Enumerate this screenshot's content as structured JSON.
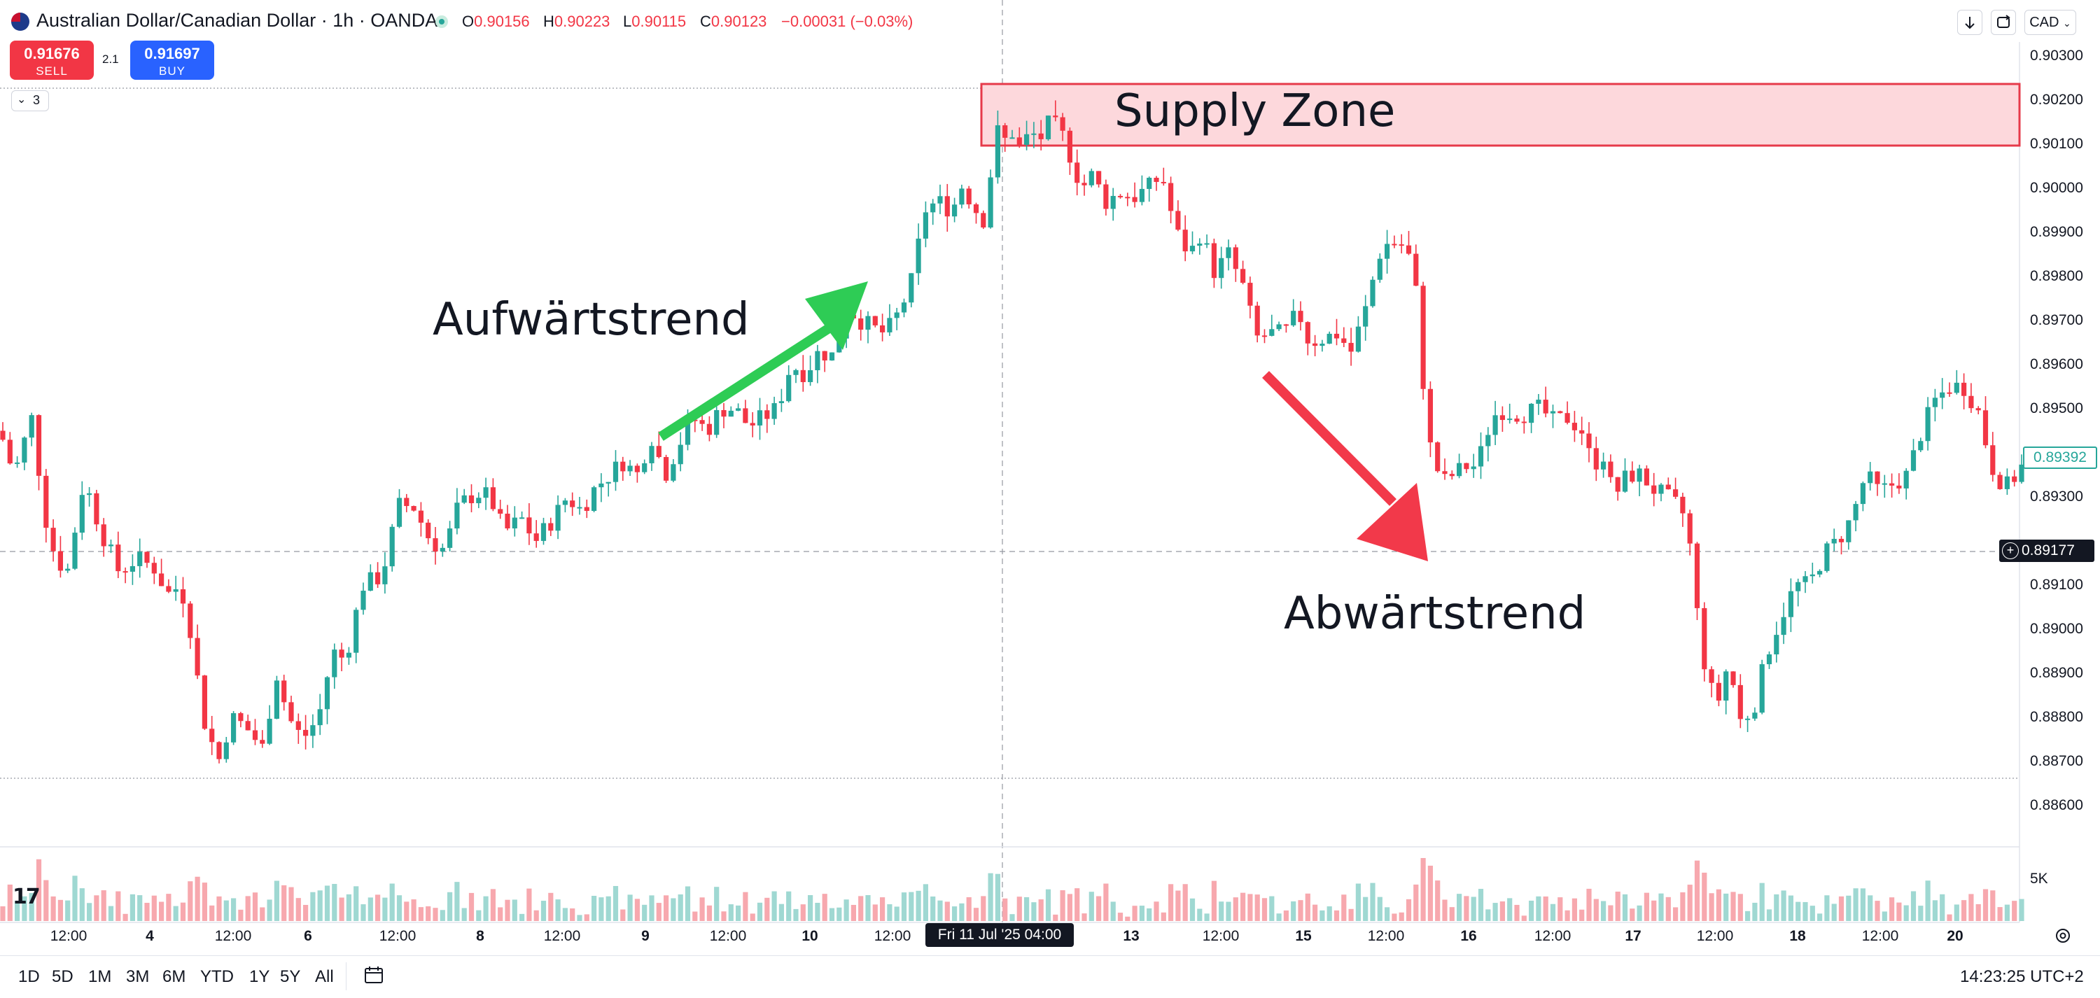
{
  "header": {
    "symbol_title": "Australian Dollar/Canadian Dollar · 1h · OANDA",
    "ohlc": [
      {
        "key": "O",
        "value": "0.90156"
      },
      {
        "key": "H",
        "value": "0.90223"
      },
      {
        "key": "L",
        "value": "0.90115"
      },
      {
        "key": "C",
        "value": "0.90123"
      }
    ],
    "change": "−0.00031 (−0.03%)",
    "currency": "CAD",
    "icons": [
      "au-flag-icon",
      "live-status-dot-icon",
      "arrow-down-icon",
      "refresh-icon"
    ]
  },
  "trade": {
    "sell_price": "0.91676",
    "sell_label": "SELL",
    "spread": "2.1",
    "buy_price": "0.91697",
    "buy_label": "BUY"
  },
  "indicator_collapse": {
    "count": "3"
  },
  "annotations": {
    "uptrend": "Aufwärtstrend",
    "downtrend": "Abwärtstrend",
    "supply_zone": "Supply Zone"
  },
  "price_axis": {
    "ticks": [
      "0.90300",
      "0.90200",
      "0.90100",
      "0.90000",
      "0.89900",
      "0.89800",
      "0.89700",
      "0.89600",
      "0.89500",
      "0.89400",
      "0.89300",
      "0.89100",
      "0.89000",
      "0.88900",
      "0.88800",
      "0.88700",
      "0.88600"
    ],
    "current_price": "0.89392",
    "crosshair_price": "0.89177",
    "volume_scale": "5K"
  },
  "time_axis": {
    "ticks": [
      {
        "label": "12:00",
        "bold": false
      },
      {
        "label": "4",
        "bold": true
      },
      {
        "label": "12:00",
        "bold": false
      },
      {
        "label": "6",
        "bold": true
      },
      {
        "label": "12:00",
        "bold": false
      },
      {
        "label": "8",
        "bold": true
      },
      {
        "label": "12:00",
        "bold": false
      },
      {
        "label": "9",
        "bold": true
      },
      {
        "label": "12:00",
        "bold": false
      },
      {
        "label": "10",
        "bold": true
      },
      {
        "label": "12:00",
        "bold": false
      },
      {
        "label": "13",
        "bold": true
      },
      {
        "label": "12:00",
        "bold": false
      },
      {
        "label": "15",
        "bold": true
      },
      {
        "label": "12:00",
        "bold": false
      },
      {
        "label": "16",
        "bold": true
      },
      {
        "label": "12:00",
        "bold": false
      },
      {
        "label": "17",
        "bold": true
      },
      {
        "label": "12:00",
        "bold": false
      },
      {
        "label": "18",
        "bold": true
      },
      {
        "label": "12:00",
        "bold": false
      },
      {
        "label": "20",
        "bold": true
      }
    ],
    "crosshair_time": "Fri 11 Jul '25   04:00"
  },
  "bottom_bar": {
    "ranges": [
      "1D",
      "5D",
      "1M",
      "3M",
      "6M",
      "YTD",
      "1Y",
      "5Y",
      "All"
    ],
    "clock": "14:23:25 UTC+2"
  },
  "colors": {
    "up": "#26a69a",
    "down": "#f23645",
    "supply_fill": "#fdd8dc",
    "arrow_up": "#2ecc55",
    "arrow_down": "#f2394a",
    "sell": "#f23645",
    "buy": "#2962ff"
  },
  "chart_data": {
    "type": "candlestick",
    "title": "Australian Dollar/Canadian Dollar · 1h · OANDA",
    "ylim": [
      0.8855,
      0.9035
    ],
    "supply_zone": [
      0.9009,
      0.9024
    ],
    "current_price": 0.89392,
    "crosshair_price": 0.89177,
    "close_path": [
      [
        0,
        0.8945
      ],
      [
        20,
        0.8935
      ],
      [
        45,
        0.8948
      ],
      [
        70,
        0.892
      ],
      [
        95,
        0.8912
      ],
      [
        120,
        0.8934
      ],
      [
        145,
        0.8922
      ],
      [
        170,
        0.8913
      ],
      [
        195,
        0.8916
      ],
      [
        220,
        0.8914
      ],
      [
        240,
        0.8908
      ],
      [
        258,
        0.891
      ],
      [
        272,
        0.89
      ],
      [
        290,
        0.888
      ],
      [
        312,
        0.887
      ],
      [
        330,
        0.888
      ],
      [
        350,
        0.8878
      ],
      [
        375,
        0.8873
      ],
      [
        395,
        0.889
      ],
      [
        412,
        0.888
      ],
      [
        432,
        0.8875
      ],
      [
        455,
        0.888
      ],
      [
        475,
        0.8895
      ],
      [
        493,
        0.8893
      ],
      [
        518,
        0.891
      ],
      [
        545,
        0.8912
      ],
      [
        570,
        0.8928
      ],
      [
        590,
        0.8928
      ],
      [
        615,
        0.892
      ],
      [
        635,
        0.8918
      ],
      [
        655,
        0.8928
      ],
      [
        680,
        0.8931
      ],
      [
        700,
        0.893
      ],
      [
        720,
        0.8922
      ],
      [
        745,
        0.8925
      ],
      [
        765,
        0.892
      ],
      [
        790,
        0.8925
      ],
      [
        810,
        0.893
      ],
      [
        830,
        0.8927
      ],
      [
        850,
        0.8932
      ],
      [
        870,
        0.8935
      ],
      [
        890,
        0.8938
      ],
      [
        910,
        0.8935
      ],
      [
        930,
        0.8944
      ],
      [
        950,
        0.8935
      ],
      [
        970,
        0.8942
      ],
      [
        990,
        0.8948
      ],
      [
        1010,
        0.8945
      ],
      [
        1030,
        0.895
      ],
      [
        1050,
        0.895
      ],
      [
        1070,
        0.8946
      ],
      [
        1090,
        0.8948
      ],
      [
        1110,
        0.895
      ],
      [
        1130,
        0.896
      ],
      [
        1150,
        0.8958
      ],
      [
        1170,
        0.8963
      ],
      [
        1190,
        0.8962
      ],
      [
        1210,
        0.8973
      ],
      [
        1230,
        0.897
      ],
      [
        1250,
        0.8968
      ],
      [
        1265,
        0.8967
      ],
      [
        1285,
        0.8972
      ],
      [
        1305,
        0.898
      ],
      [
        1320,
        0.8995
      ],
      [
        1340,
        0.8997
      ],
      [
        1360,
        0.8995
      ],
      [
        1375,
        0.9001
      ],
      [
        1390,
        0.8996
      ],
      [
        1405,
        0.8993
      ],
      [
        1415,
        0.9003
      ],
      [
        1420,
        0.9015
      ],
      [
        1432,
        0.901
      ],
      [
        1445,
        0.9013
      ],
      [
        1460,
        0.9008
      ],
      [
        1470,
        0.9013
      ],
      [
        1485,
        0.9011
      ],
      [
        1500,
        0.9015
      ],
      [
        1515,
        0.9013
      ],
      [
        1530,
        0.9007
      ],
      [
        1545,
        0.9
      ],
      [
        1560,
        0.9003
      ],
      [
        1580,
        0.8997
      ],
      [
        1600,
        0.8999
      ],
      [
        1620,
        0.8998
      ],
      [
        1640,
        0.9
      ],
      [
        1660,
        0.9003
      ],
      [
        1680,
        0.899
      ],
      [
        1700,
        0.8985
      ],
      [
        1715,
        0.899
      ],
      [
        1735,
        0.8981
      ],
      [
        1755,
        0.8985
      ],
      [
        1775,
        0.8978
      ],
      [
        1795,
        0.8966
      ],
      [
        1815,
        0.8967
      ],
      [
        1835,
        0.8967
      ],
      [
        1855,
        0.8972
      ],
      [
        1870,
        0.8965
      ],
      [
        1890,
        0.8966
      ],
      [
        1910,
        0.8967
      ],
      [
        1930,
        0.8963
      ],
      [
        1950,
        0.8972
      ],
      [
        1970,
        0.8985
      ],
      [
        1985,
        0.8988
      ],
      [
        2005,
        0.8987
      ],
      [
        2020,
        0.8982
      ],
      [
        2030,
        0.8962
      ],
      [
        2040,
        0.8943
      ],
      [
        2060,
        0.8933
      ],
      [
        2075,
        0.8935
      ],
      [
        2095,
        0.8937
      ],
      [
        2110,
        0.8937
      ],
      [
        2125,
        0.8945
      ],
      [
        2140,
        0.895
      ],
      [
        2160,
        0.8949
      ],
      [
        2180,
        0.8949
      ],
      [
        2200,
        0.895
      ],
      [
        2220,
        0.8947
      ],
      [
        2240,
        0.8948
      ],
      [
        2260,
        0.8945
      ],
      [
        2275,
        0.8937
      ],
      [
        2290,
        0.894
      ],
      [
        2305,
        0.893
      ],
      [
        2325,
        0.8935
      ],
      [
        2345,
        0.8935
      ],
      [
        2360,
        0.8932
      ],
      [
        2380,
        0.893
      ],
      [
        2395,
        0.8928
      ],
      [
        2410,
        0.8925
      ],
      [
        2425,
        0.8903
      ],
      [
        2440,
        0.8887
      ],
      [
        2455,
        0.8884
      ],
      [
        2470,
        0.8893
      ],
      [
        2485,
        0.8879
      ],
      [
        2505,
        0.8882
      ],
      [
        2525,
        0.8895
      ],
      [
        2545,
        0.8903
      ],
      [
        2565,
        0.891
      ],
      [
        2585,
        0.891
      ],
      [
        2605,
        0.8917
      ],
      [
        2625,
        0.892
      ],
      [
        2645,
        0.8925
      ],
      [
        2665,
        0.8935
      ],
      [
        2685,
        0.8931
      ],
      [
        2705,
        0.8933
      ],
      [
        2725,
        0.8935
      ],
      [
        2745,
        0.8945
      ],
      [
        2765,
        0.8952
      ],
      [
        2785,
        0.8955
      ],
      [
        2805,
        0.8955
      ],
      [
        2825,
        0.895
      ],
      [
        2845,
        0.8937
      ],
      [
        2865,
        0.8932
      ],
      [
        2880,
        0.8935
      ],
      [
        2893,
        0.8938
      ]
    ]
  }
}
